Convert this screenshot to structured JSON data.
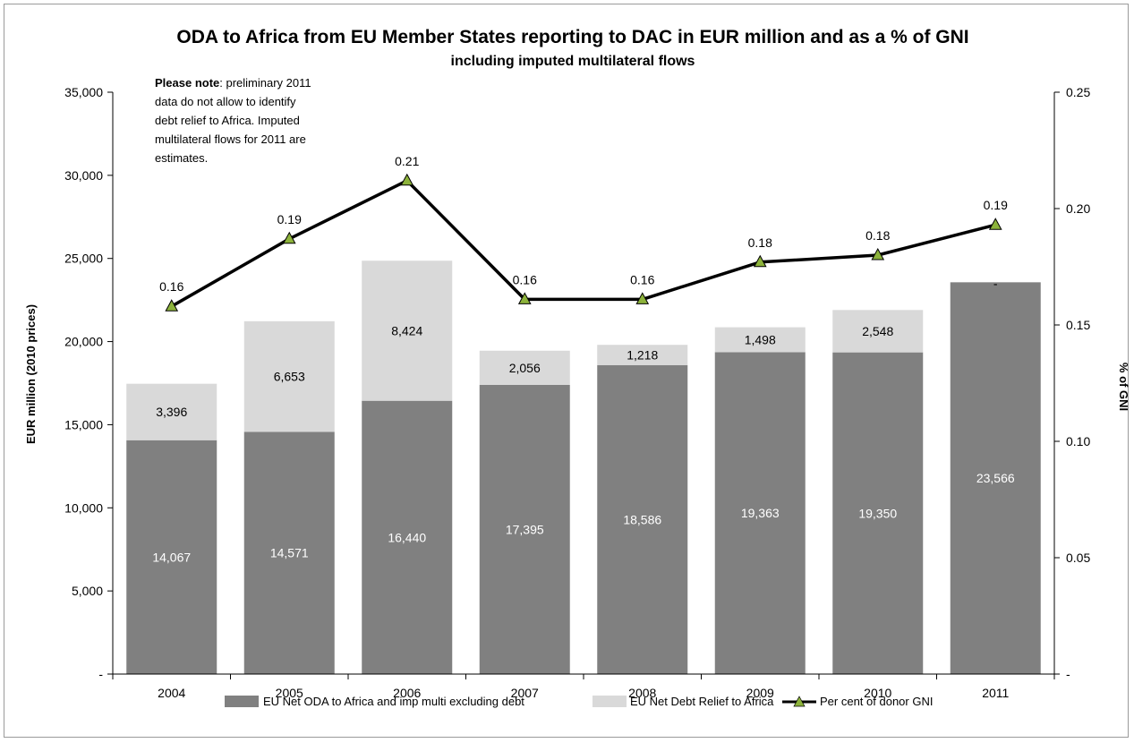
{
  "chart_data": {
    "type": "bar",
    "title": "ODA to Africa from EU Member States reporting to DAC in EUR million and as a % of GNI",
    "subtitle": "including imputed multilateral flows",
    "categories": [
      "2004",
      "2005",
      "2006",
      "2007",
      "2008",
      "2009",
      "2010",
      "2011"
    ],
    "series": [
      {
        "name": "EU Net ODA to Africa and imp multi excluding debt",
        "type": "bar-stacked",
        "color": "#808080",
        "values": [
          14067,
          14571,
          16440,
          17395,
          18586,
          19363,
          19350,
          23566
        ],
        "labels": [
          "14,067",
          "14,571",
          "16,440",
          "17,395",
          "18,586",
          "19,363",
          "19,350",
          "23,566"
        ]
      },
      {
        "name": "EU Net Debt Relief to Africa",
        "type": "bar-stacked",
        "color": "#d9d9d9",
        "values": [
          3396,
          6653,
          8424,
          2056,
          1218,
          1498,
          2548,
          0
        ],
        "labels": [
          "3,396",
          "6,653",
          "8,424",
          "2,056",
          "1,218",
          "1,498",
          "2,548",
          "-"
        ]
      },
      {
        "name": "Per cent of donor GNI",
        "type": "line",
        "axis": "right",
        "color": "#000000",
        "marker_color": "#8db33b",
        "values": [
          0.158,
          0.187,
          0.212,
          0.161,
          0.161,
          0.177,
          0.18,
          0.193
        ],
        "labels": [
          "0.16",
          "0.19",
          "0.21",
          "0.16",
          "0.16",
          "0.18",
          "0.18",
          "0.19"
        ]
      }
    ],
    "ylabel": "EUR million (2010 prices)",
    "ylabel_right": "% of GNI",
    "ylim": [
      0,
      35000
    ],
    "ylim_right": [
      0,
      0.25
    ],
    "yticks": [
      "-",
      "5,000",
      "10,000",
      "15,000",
      "20,000",
      "25,000",
      "30,000",
      "35,000"
    ],
    "yticks_right": [
      "-",
      "0.05",
      "0.10",
      "0.15",
      "0.20",
      "0.25"
    ],
    "grid": false,
    "legend_position": "bottom",
    "note": {
      "bold": "Please note",
      "text": ":  preliminary 2011",
      "lines": [
        "data do not allow to identify",
        "debt relief to Africa.  Imputed",
        "multilateral flows for 2011 are",
        "estimates."
      ]
    }
  }
}
